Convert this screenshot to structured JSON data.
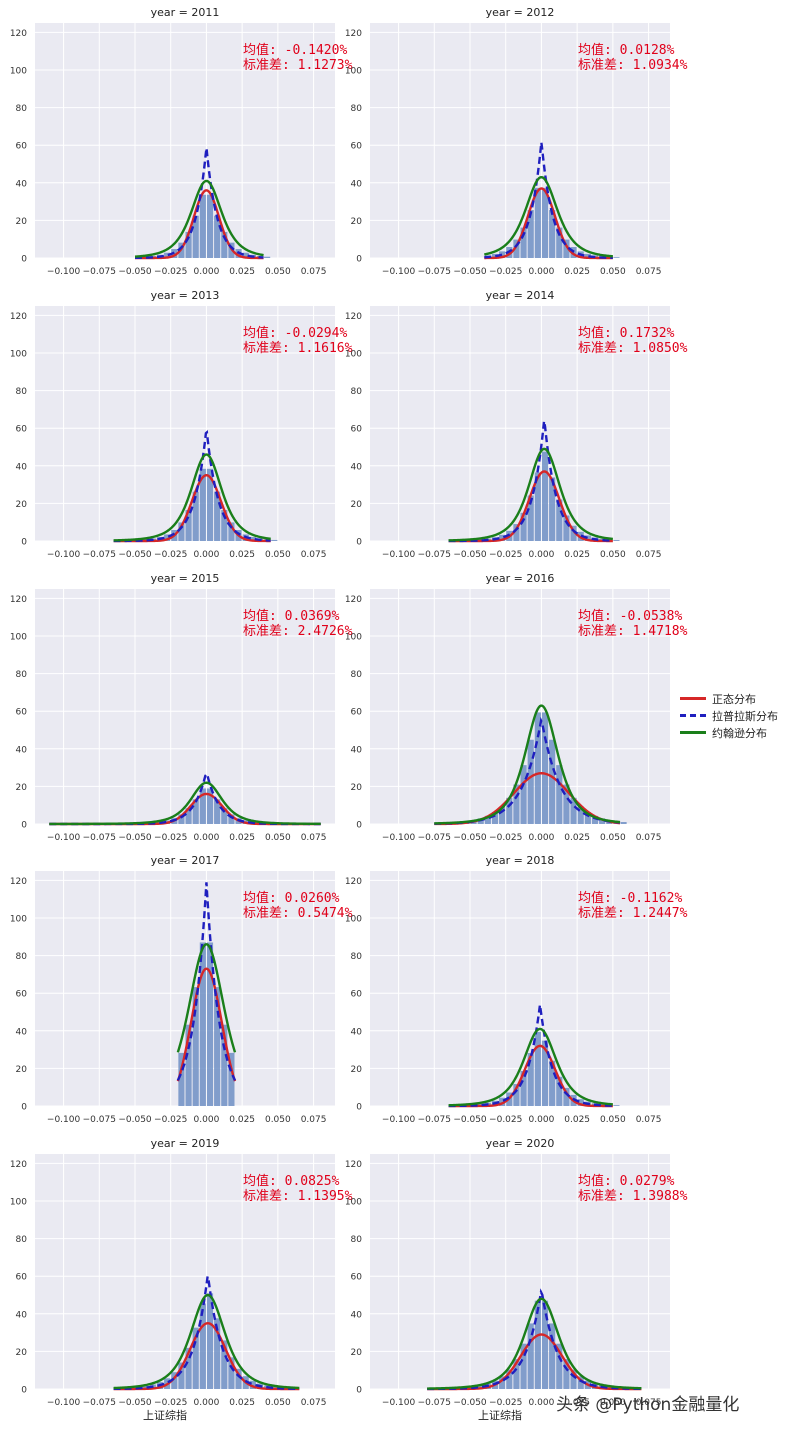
{
  "legend": {
    "items": [
      {
        "label": "正态分布",
        "color": "#d62728",
        "style": "solid"
      },
      {
        "label": "拉普拉斯分布",
        "color": "#1f1fbf",
        "style": "dashed"
      },
      {
        "label": "约翰逊分布",
        "color": "#1a7f1a",
        "style": "solid"
      }
    ]
  },
  "watermark": "头条 @Python金融量化",
  "chart_data": {
    "type": "histogram",
    "layout": "facet grid 5 rows x 2 columns",
    "xlabel": "上证综指",
    "xticks": [
      "−0.100",
      "−0.075",
      "−0.050",
      "−0.025",
      "0.000",
      "0.025",
      "0.050",
      "0.075"
    ],
    "yticks": [
      "0",
      "20",
      "40",
      "60",
      "80",
      "100",
      "120"
    ],
    "xlim": [
      -0.12,
      0.09
    ],
    "ylim": [
      0,
      125
    ],
    "grid": true,
    "mean_label": "均值:",
    "std_label": "标准差:",
    "panels": [
      {
        "title": "year = 2011",
        "mean": "-0.1420%",
        "std": "1.1273%",
        "normal_peak": 36,
        "laplace_peak": 59,
        "johnson_peak": 41,
        "hist_peak": 40,
        "xmin": -0.05,
        "xmax": 0.04,
        "center": 0.0
      },
      {
        "title": "year = 2012",
        "mean": "0.0128%",
        "std": "1.0934%",
        "normal_peak": 37,
        "laplace_peak": 62,
        "johnson_peak": 43,
        "hist_peak": 44,
        "xmin": -0.04,
        "xmax": 0.05,
        "center": 0.0
      },
      {
        "title": "year = 2013",
        "mean": "-0.0294%",
        "std": "1.1616%",
        "normal_peak": 35,
        "laplace_peak": 60,
        "johnson_peak": 46,
        "hist_peak": 45,
        "xmin": -0.065,
        "xmax": 0.045,
        "center": 0.0
      },
      {
        "title": "year = 2014",
        "mean": "0.1732%",
        "std": "1.0850%",
        "normal_peak": 37,
        "laplace_peak": 65,
        "johnson_peak": 49,
        "hist_peak": 49,
        "xmin": -0.065,
        "xmax": 0.05,
        "center": 0.002
      },
      {
        "title": "year = 2015",
        "mean": "0.0369%",
        "std": "2.4726%",
        "normal_peak": 16,
        "laplace_peak": 28,
        "johnson_peak": 22,
        "hist_peak": 22,
        "xmin": -0.11,
        "xmax": 0.08,
        "center": 0.0
      },
      {
        "title": "year = 2016",
        "mean": "-0.0538%",
        "std": "1.4718%",
        "normal_peak": 27,
        "laplace_peak": 56,
        "johnson_peak": 63,
        "hist_peak": 66,
        "xmin": -0.075,
        "xmax": 0.055,
        "center": 0.0
      },
      {
        "title": "year = 2017",
        "mean": "0.0260%",
        "std": "0.5474%",
        "normal_peak": 73,
        "laplace_peak": 119,
        "johnson_peak": 86,
        "hist_peak": 100,
        "xmin": -0.02,
        "xmax": 0.02,
        "center": 0.0
      },
      {
        "title": "year = 2018",
        "mean": "-0.1162%",
        "std": "1.2447%",
        "normal_peak": 32,
        "laplace_peak": 54,
        "johnson_peak": 41,
        "hist_peak": 43,
        "xmin": -0.065,
        "xmax": 0.05,
        "center": -0.001
      },
      {
        "title": "year = 2019",
        "mean": "0.0825%",
        "std": "1.1395%",
        "normal_peak": 35,
        "laplace_peak": 61,
        "johnson_peak": 50,
        "hist_peak": 55,
        "xmin": -0.065,
        "xmax": 0.065,
        "center": 0.001
      },
      {
        "title": "year = 2020",
        "mean": "0.0279%",
        "std": "1.3988%",
        "normal_peak": 29,
        "laplace_peak": 53,
        "johnson_peak": 48,
        "hist_peak": 53,
        "xmin": -0.08,
        "xmax": 0.07,
        "center": 0.0
      }
    ]
  }
}
